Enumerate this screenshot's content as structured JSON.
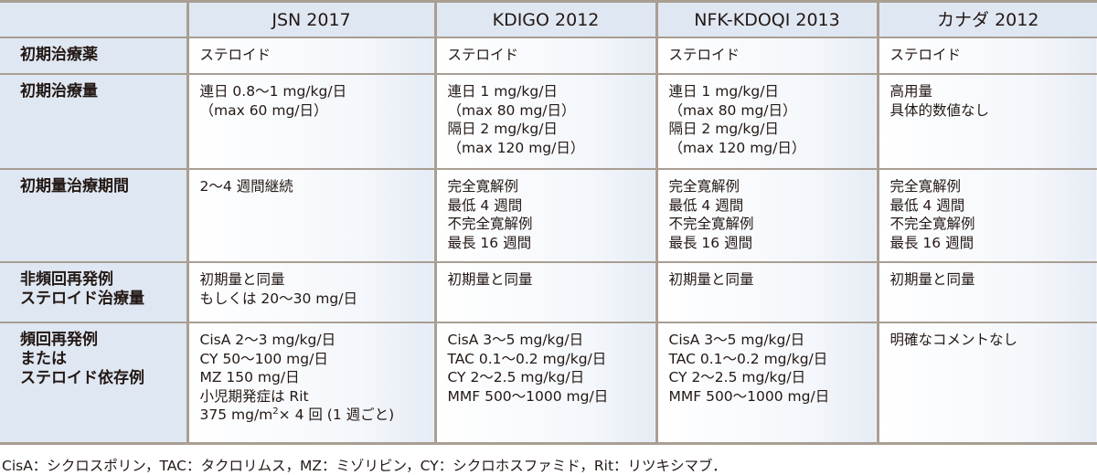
{
  "columns": [
    "JSN 2017",
    "KDIGO 2012",
    "NFK-KDOQI 2013",
    "カナダ 2012"
  ],
  "rows": [
    {
      "header": [
        "初期治療薬"
      ],
      "cells": [
        [
          "ステロイド"
        ],
        [
          "ステロイド"
        ],
        [
          "ステロイド"
        ],
        [
          "ステロイド"
        ]
      ]
    },
    {
      "header": [
        "初期治療量"
      ],
      "cells": [
        [
          "連日 0.8～1 mg/kg/日",
          "（max 60 mg/日）"
        ],
        [
          "連日 1 mg/kg/日",
          "（max 80 mg/日）",
          "隔日 2 mg/kg/日",
          "（max 120 mg/日）"
        ],
        [
          "連日 1 mg/kg/日",
          "（max 80 mg/日）",
          "隔日 2 mg/kg/日",
          "（max 120 mg/日）"
        ],
        [
          "高用量",
          "具体的数値なし"
        ]
      ]
    },
    {
      "header": [
        "初期量治療期間"
      ],
      "cells": [
        [
          "2～4 週間継続"
        ],
        [
          "完全寛解例",
          "最低 4 週間",
          "不完全寛解例",
          "最長 16 週間"
        ],
        [
          "完全寛解例",
          "最低 4 週間",
          "不完全寛解例",
          "最長 16 週間"
        ],
        [
          "完全寛解例",
          "最低 4 週間",
          "不完全寛解例",
          "最長 16 週間"
        ]
      ]
    },
    {
      "header": [
        "非頻回再発例",
        "ステロイド治療量"
      ],
      "cells": [
        [
          "初期量と同量",
          "もしくは 20～30 mg/日"
        ],
        [
          "初期量と同量"
        ],
        [
          "初期量と同量"
        ],
        [
          "初期量と同量"
        ]
      ]
    },
    {
      "header": [
        "頻回再発例",
        "または",
        "ステロイド依存例"
      ],
      "cells": [
        [
          "CisA 2～3 mg/kg/日",
          "CY 50～100 mg/日",
          "MZ 150 mg/日",
          "小児期発症は Rit"
        ],
        [
          "CisA 3～5 mg/kg/日",
          "TAC 0.1～0.2 mg/kg/日",
          "CY 2～2.5 mg/kg/日",
          "MMF 500～1000 mg/日"
        ],
        [
          "CisA 3～5 mg/kg/日",
          "TAC 0.1～0.2 mg/kg/日",
          "CY 2～2.5 mg/kg/日",
          "MMF 500～1000 mg/日"
        ],
        [
          "明確なコメントなし"
        ]
      ]
    }
  ],
  "rit_dose": {
    "prefix": "375 mg/m",
    "sup": "2",
    "suffix": "× 4 回 (1 週ごと)"
  },
  "footnote": "CisA：シクロスポリン，TAC：タクロリムス，MZ：ミゾリビン，CY：シクロホスファミド，Rit：リツキシマブ．"
}
